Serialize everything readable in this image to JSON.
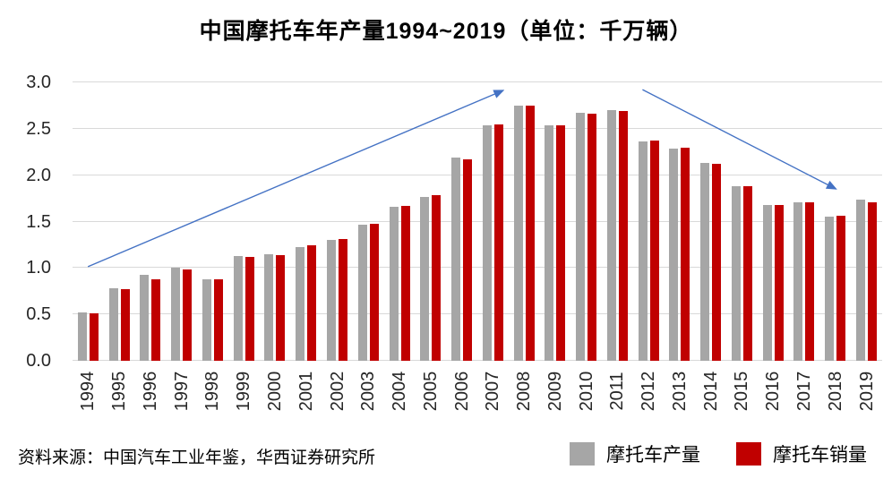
{
  "title": "中国摩托车年产量1994~2019（单位：千万辆）",
  "source_note": "资料来源：中国汽车工业年鉴，华西证券研究所",
  "colors": {
    "production": "#a6a6a6",
    "sales": "#c00000",
    "arrow": "#4472c4",
    "gridline": "#d9d9d9",
    "axis_text": "#262626"
  },
  "chart_data": {
    "type": "bar",
    "title": "中国摩托车年产量1994~2019（单位：千万辆）",
    "unit": "千万辆",
    "categories": [
      "1994",
      "1995",
      "1996",
      "1997",
      "1998",
      "1999",
      "2000",
      "2001",
      "2002",
      "2003",
      "2004",
      "2005",
      "2006",
      "2007",
      "2008",
      "2009",
      "2010",
      "2011",
      "2012",
      "2013",
      "2014",
      "2015",
      "2016",
      "2017",
      "2018",
      "2019"
    ],
    "series": [
      {
        "name": "摩托车产量",
        "color": "#a6a6a6",
        "values": [
          0.52,
          0.78,
          0.93,
          1.0,
          0.88,
          1.13,
          1.15,
          1.23,
          1.3,
          1.47,
          1.66,
          1.77,
          2.19,
          2.54,
          2.75,
          2.54,
          2.67,
          2.7,
          2.36,
          2.29,
          2.13,
          1.88,
          1.68,
          1.71,
          1.55,
          1.74
        ]
      },
      {
        "name": "摩托车销量",
        "color": "#c00000",
        "values": [
          0.51,
          0.77,
          0.88,
          0.98,
          0.88,
          1.12,
          1.14,
          1.24,
          1.31,
          1.48,
          1.67,
          1.78,
          2.17,
          2.55,
          2.75,
          2.54,
          2.66,
          2.69,
          2.37,
          2.3,
          2.12,
          1.88,
          1.68,
          1.71,
          1.56,
          1.71
        ]
      }
    ],
    "ylim": [
      0,
      3.0
    ],
    "yticks": [
      "0.0",
      "0.5",
      "1.0",
      "1.5",
      "2.0",
      "2.5",
      "3.0"
    ],
    "grid": true,
    "legend_position": "bottom-right",
    "annotations": [
      {
        "name": "uptrend-arrow",
        "shape": "arrow",
        "from_frac": {
          "x": 0.019,
          "y": 0.662
        },
        "to_frac": {
          "x": 0.532,
          "y": 0.029
        }
      },
      {
        "name": "downtrend-arrow",
        "shape": "arrow",
        "from_frac": {
          "x": 0.704,
          "y": 0.026
        },
        "to_frac": {
          "x": 0.943,
          "y": 0.383
        }
      }
    ]
  }
}
